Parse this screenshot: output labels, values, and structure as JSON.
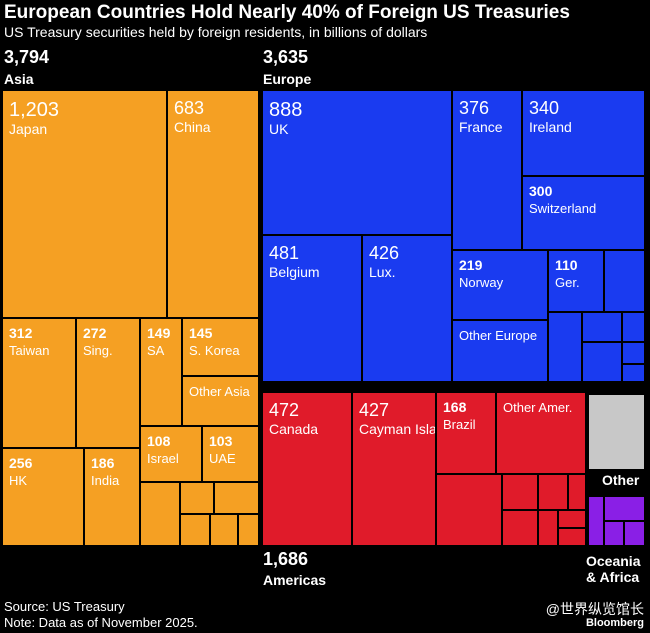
{
  "header": {
    "title": "European Countries Hold Nearly 40% of Foreign US Treasuries",
    "subtitle": "US Treasury securities held by foreign residents, in billions of dollars"
  },
  "regions": {
    "asia": {
      "value": "3,794",
      "name": "Asia"
    },
    "europe": {
      "value": "3,635",
      "name": "Europe"
    },
    "americas": {
      "value": "1,686",
      "name": "Americas"
    },
    "other": {
      "name": "Other"
    },
    "oceania_africa": {
      "name": "Oceania & Africa"
    }
  },
  "footer": {
    "source": "Source: US Treasury",
    "note": "Note: Data as of November 2025."
  },
  "watermark": "@世界纵览馆长",
  "brand": "Bloomberg",
  "colors": {
    "asia": "#F5A023",
    "europe": "#1A3BF0",
    "americas": "#E01B2A",
    "other": "#C8C8C8",
    "oceania_africa": "#8A1FE6",
    "border": "#000000",
    "background": "#000000"
  },
  "chart_data": {
    "type": "treemap",
    "title": "European Countries Hold Nearly 40% of Foreign US Treasuries",
    "subtitle": "US Treasury securities held by foreign residents, in billions of dollars",
    "unit": "billions of dollars",
    "groups": [
      {
        "name": "Asia",
        "total": 3794,
        "color": "#F5A023",
        "items": [
          {
            "label": "Japan",
            "value": 1203
          },
          {
            "label": "China",
            "value": 683
          },
          {
            "label": "Taiwan",
            "value": 312
          },
          {
            "label": "Sing.",
            "value": 272
          },
          {
            "label": "HK",
            "value": 256
          },
          {
            "label": "India",
            "value": 186
          },
          {
            "label": "SA",
            "value": 149
          },
          {
            "label": "S. Korea",
            "value": 145
          },
          {
            "label": "Israel",
            "value": 108
          },
          {
            "label": "UAE",
            "value": 103
          },
          {
            "label": "Other Asia",
            "value": null
          }
        ]
      },
      {
        "name": "Europe",
        "total": 3635,
        "color": "#1A3BF0",
        "items": [
          {
            "label": "UK",
            "value": 888
          },
          {
            "label": "Belgium",
            "value": 481
          },
          {
            "label": "Lux.",
            "value": 426
          },
          {
            "label": "France",
            "value": 376
          },
          {
            "label": "Ireland",
            "value": 340
          },
          {
            "label": "Switzerland",
            "value": 300
          },
          {
            "label": "Norway",
            "value": 219
          },
          {
            "label": "Ger.",
            "value": 110
          },
          {
            "label": "Other Europe",
            "value": null
          }
        ]
      },
      {
        "name": "Americas",
        "total": 1686,
        "color": "#E01B2A",
        "items": [
          {
            "label": "Canada",
            "value": 472
          },
          {
            "label": "Cayman Islands",
            "value": 427
          },
          {
            "label": "Brazil",
            "value": 168
          },
          {
            "label": "Other Amer.",
            "value": null
          }
        ]
      },
      {
        "name": "Other",
        "total": null,
        "color": "#C8C8C8",
        "items": []
      },
      {
        "name": "Oceania & Africa",
        "total": null,
        "color": "#8A1FE6",
        "items": []
      }
    ]
  }
}
